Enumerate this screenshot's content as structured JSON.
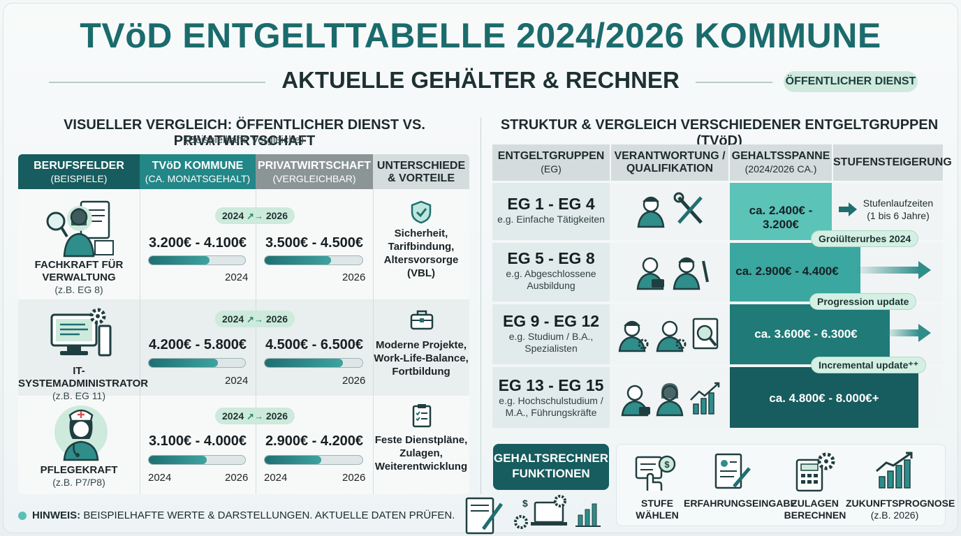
{
  "header": {
    "title": "TVöD ENTGELTTABELLE 2024/2026 KOMMUNE",
    "subtitle": "AKTUELLE GEHÄLTER & RECHNER",
    "badge": "ÖFFENTLICHER DIENST"
  },
  "left": {
    "title": "VISUELLER VERGLEICH: ÖFFENTLICHER DIENST VS. PRIVATWIRTSCHAFT",
    "subtitle": "(Beispielhafte Vergleiche)",
    "columns": [
      {
        "title": "BERUFSFELDER",
        "sub": "(BEISPIELE)"
      },
      {
        "title": "TVöD KOMMUNE",
        "sub": "(CA. MONATSGEHALT)"
      },
      {
        "title": "PRIVATWIRTSCHAFT",
        "sub": "(VERGLEICHBAR)"
      },
      {
        "title": "UNTERSCHIEDE",
        "sub": "& VORTEILE"
      }
    ],
    "rows": [
      {
        "name_line1": "FACHKRAFT FÜR",
        "name_line2": "VERWALTUNG",
        "group": "(z.B. EG 8)",
        "icon": "admin-worker-icon",
        "year_pill": {
          "from": "2024",
          "to": "2026"
        },
        "tvod_range": "3.200€ - 4.100€",
        "tvod_fill": 0.63,
        "tvod_year": "2024",
        "tvod_year2": "",
        "private_range": "3.500€ - 4.500€",
        "private_fill": 0.68,
        "private_year": "",
        "private_year2": "2026",
        "benefit_icon": "shield-check-icon",
        "benefits": [
          "Sicherheit,",
          "Tarifbindung,",
          "Altersvorsorge",
          "(VBL)"
        ]
      },
      {
        "name_line1": "IT-SYSTEMADMINISTRATOR",
        "name_line2": "",
        "group": "(z.B. EG 11)",
        "icon": "computer-gear-icon",
        "year_pill": {
          "from": "2024",
          "to": "2026"
        },
        "tvod_range": "4.200€ - 5.800€",
        "tvod_fill": 0.72,
        "tvod_year": "",
        "tvod_year2": "2024",
        "private_range": "4.500€ - 6.500€",
        "private_fill": 0.8,
        "private_year": "",
        "private_year2": "2026",
        "benefit_icon": "briefcase-icon",
        "benefits": [
          "Moderne Projekte,",
          "Work-Life-Balance,",
          "Fortbildung"
        ]
      },
      {
        "name_line1": "PFLEGEKRAFT",
        "name_line2": "",
        "group": "(z.B. P7/P8)",
        "icon": "nurse-icon",
        "year_pill": {
          "from": "2024",
          "to": "2026"
        },
        "tvod_range": "3.100€ - 4.000€",
        "tvod_fill": 0.6,
        "tvod_year": "2024",
        "tvod_year2": "2026",
        "private_range": "2.900€ - 4.200€",
        "private_fill": 0.58,
        "private_year": "2024",
        "private_year2": "2026",
        "benefit_icon": "clipboard-icon",
        "benefits": [
          "Feste Dienstpläne,",
          "Zulagen,",
          "Weiterentwicklung"
        ]
      }
    ]
  },
  "right": {
    "title": "STRUKTUR & VERGLEICH VERSCHIEDENER ENTGELTGRUPPEN (TVöD)",
    "columns": [
      {
        "title": "ENTGELTGRUPPEN",
        "sub": "(EG)"
      },
      {
        "title": "VERANTWORTUNG /",
        "sub": "QUALIFIKATION"
      },
      {
        "title": "GEHALTSSPANNE",
        "sub": "(2024/2026 CA.)"
      },
      {
        "title": "STUFENSTEIGERUNG",
        "sub": ""
      }
    ],
    "rows": [
      {
        "group": "EG 1 - EG 4",
        "desc1": "e.g. Einfache Tätigkeiten",
        "desc2": "",
        "salary": "ca. 2.400€ - 3.200€",
        "level": 0.25,
        "stufe_text1": "Stufenlaufzeiten",
        "stufe_text2": "(1 bis 6 Jahre)"
      },
      {
        "group": "EG 5 - EG 8",
        "desc1": "e.g. Abgeschlossene",
        "desc2": "Ausbildung",
        "salary": "ca. 2.900€ - 4.400€",
        "level": 0.5,
        "stufe_text1": "",
        "stufe_text2": ""
      },
      {
        "group": "EG 9 - EG 12",
        "desc1": "e.g. Studium / B.A.,",
        "desc2": "Spezialisten",
        "salary": "ca. 3.600€ - 6.300€",
        "level": 0.75,
        "stufe_text1": "",
        "stufe_text2": ""
      },
      {
        "group": "EG 13 - EG 15",
        "desc1": "e.g. Hochschulstudium /",
        "desc2": "M.A., Führungskräfte",
        "salary": "ca. 4.800€ - 8.000€+",
        "level": 1.0,
        "stufe_text1": "",
        "stufe_text2": ""
      }
    ],
    "update_pills": [
      "Groiülterurbes 2024",
      "Progression update",
      "Incremental update⁺⁺"
    ]
  },
  "calculator": {
    "label_line1": "GEHALTSRECHNER",
    "label_line2": "FUNKTIONEN",
    "features": [
      {
        "line1": "STUFE",
        "line2": "WÄHLEN",
        "icon": "hand-coin-icon"
      },
      {
        "line1": "ERFAHRUNGSEINGABE",
        "line2": "",
        "icon": "form-edit-icon"
      },
      {
        "line1": "ZULAGEN",
        "line2": "BERECHNEN",
        "icon": "calculator-gear-icon"
      },
      {
        "line1": "ZUKUNFTSPROGNOSE",
        "line2": "(z.B. 2026)",
        "icon": "growth-chart-icon"
      }
    ]
  },
  "note": {
    "label": "HINWEIS:",
    "text": "BEISPIELHAFTE WERTE & DARSTELLUNGEN. AKTUELLE DATEN PRÜFEN."
  },
  "colors": {
    "brand_teal": "#1b6b6c",
    "header_dark": "#175c5e",
    "header_teal": "#238687",
    "header_gray": "#8c9596",
    "header_light": "#d5dcdd",
    "accent_mint": "#cdeadc"
  }
}
